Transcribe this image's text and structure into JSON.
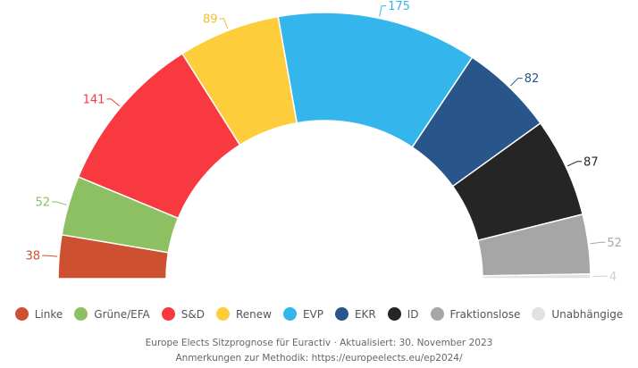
{
  "chart_data": {
    "type": "pie",
    "variant": "parliament-half-donut",
    "categories": [
      "Linke",
      "Grüne/EFA",
      "S&D",
      "Renew",
      "EVP",
      "EKR",
      "ID",
      "Fraktionslose",
      "Unabhängige"
    ],
    "values": [
      38,
      52,
      141,
      89,
      175,
      82,
      87,
      52,
      4
    ],
    "colors": [
      "#cd5130",
      "#8cc063",
      "#f83a40",
      "#fecd3c",
      "#34b6ed",
      "#28558a",
      "#252525",
      "#a6a6a6",
      "#e2e2e2"
    ],
    "label_colors": [
      "#cd5130",
      "#8cc063",
      "#f83a40",
      "#f2be2b",
      "#34b6ed",
      "#28558a",
      "#252525",
      "#a6a6a6",
      "#d0d0d0"
    ],
    "legend_position": "bottom"
  },
  "footer": {
    "line1": "Europe Elects Sitzprognose für Euractiv · Aktualisiert: 30. November 2023",
    "line2": "Anmerkungen zur Methodik: https://europeelects.eu/ep2024/"
  }
}
